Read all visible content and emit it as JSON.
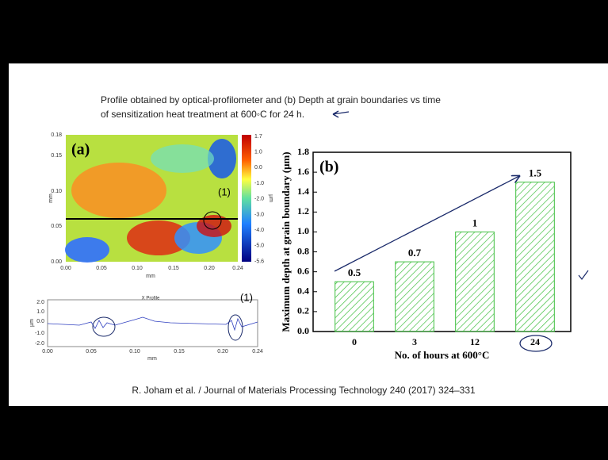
{
  "slide": {
    "caption": [
      "Profile obtained by optical-profilometer and (b) Depth at grain boundaries vs time",
      "of sensitization heat treatment at 600◦C for 24 h."
    ],
    "citation": "R. Joham et al. / Journal of Materials Processing Technology 240 (2017) 324–331"
  },
  "map": {
    "panel_label": "(a)",
    "marker": "(1)",
    "y_ticks": [
      "0.18",
      "0.15",
      "0.10",
      "0.05",
      "0.00"
    ],
    "y_unit": "mm",
    "x_ticks": [
      "0.00",
      "0.05",
      "0.10",
      "0.15",
      "0.20",
      "0.24"
    ],
    "x_unit": "mm",
    "colorbar_ticks": [
      "1.7",
      "1.0",
      "0.0",
      "-1.0",
      "-2.0",
      "-3.0",
      "-4.0",
      "-5.0",
      "-5.6"
    ],
    "colorbar_unit": "µm"
  },
  "profile": {
    "title": "X Profile",
    "marker": "(1)",
    "y_ticks": [
      "2.0",
      "1.0",
      "0.0",
      "-1.0",
      "-2.0"
    ],
    "y_unit": "µm",
    "x_ticks": [
      "0.00",
      "0.05",
      "0.10",
      "0.15",
      "0.20",
      "0.24"
    ],
    "x_unit": "mm"
  },
  "chart_data": {
    "type": "bar",
    "panel_label": "(b)",
    "xlabel": "No. of hours at 600°C",
    "ylabel": "Maximum depth at grain boundary (μm)",
    "categories": [
      "0",
      "3",
      "12",
      "24"
    ],
    "values": [
      0.5,
      0.7,
      1,
      1.5
    ],
    "value_labels": [
      "0.5",
      "0.7",
      "1",
      "1.5"
    ],
    "color": "#3fbf3f",
    "ylim": [
      0,
      1.8
    ],
    "yticks": [
      {
        "value": 0,
        "label": "0.0"
      },
      0.2,
      0.4,
      0.6,
      0.8,
      {
        "value": 1,
        "label": "1.0"
      },
      1.2,
      1.4,
      1.6,
      1.8
    ]
  }
}
